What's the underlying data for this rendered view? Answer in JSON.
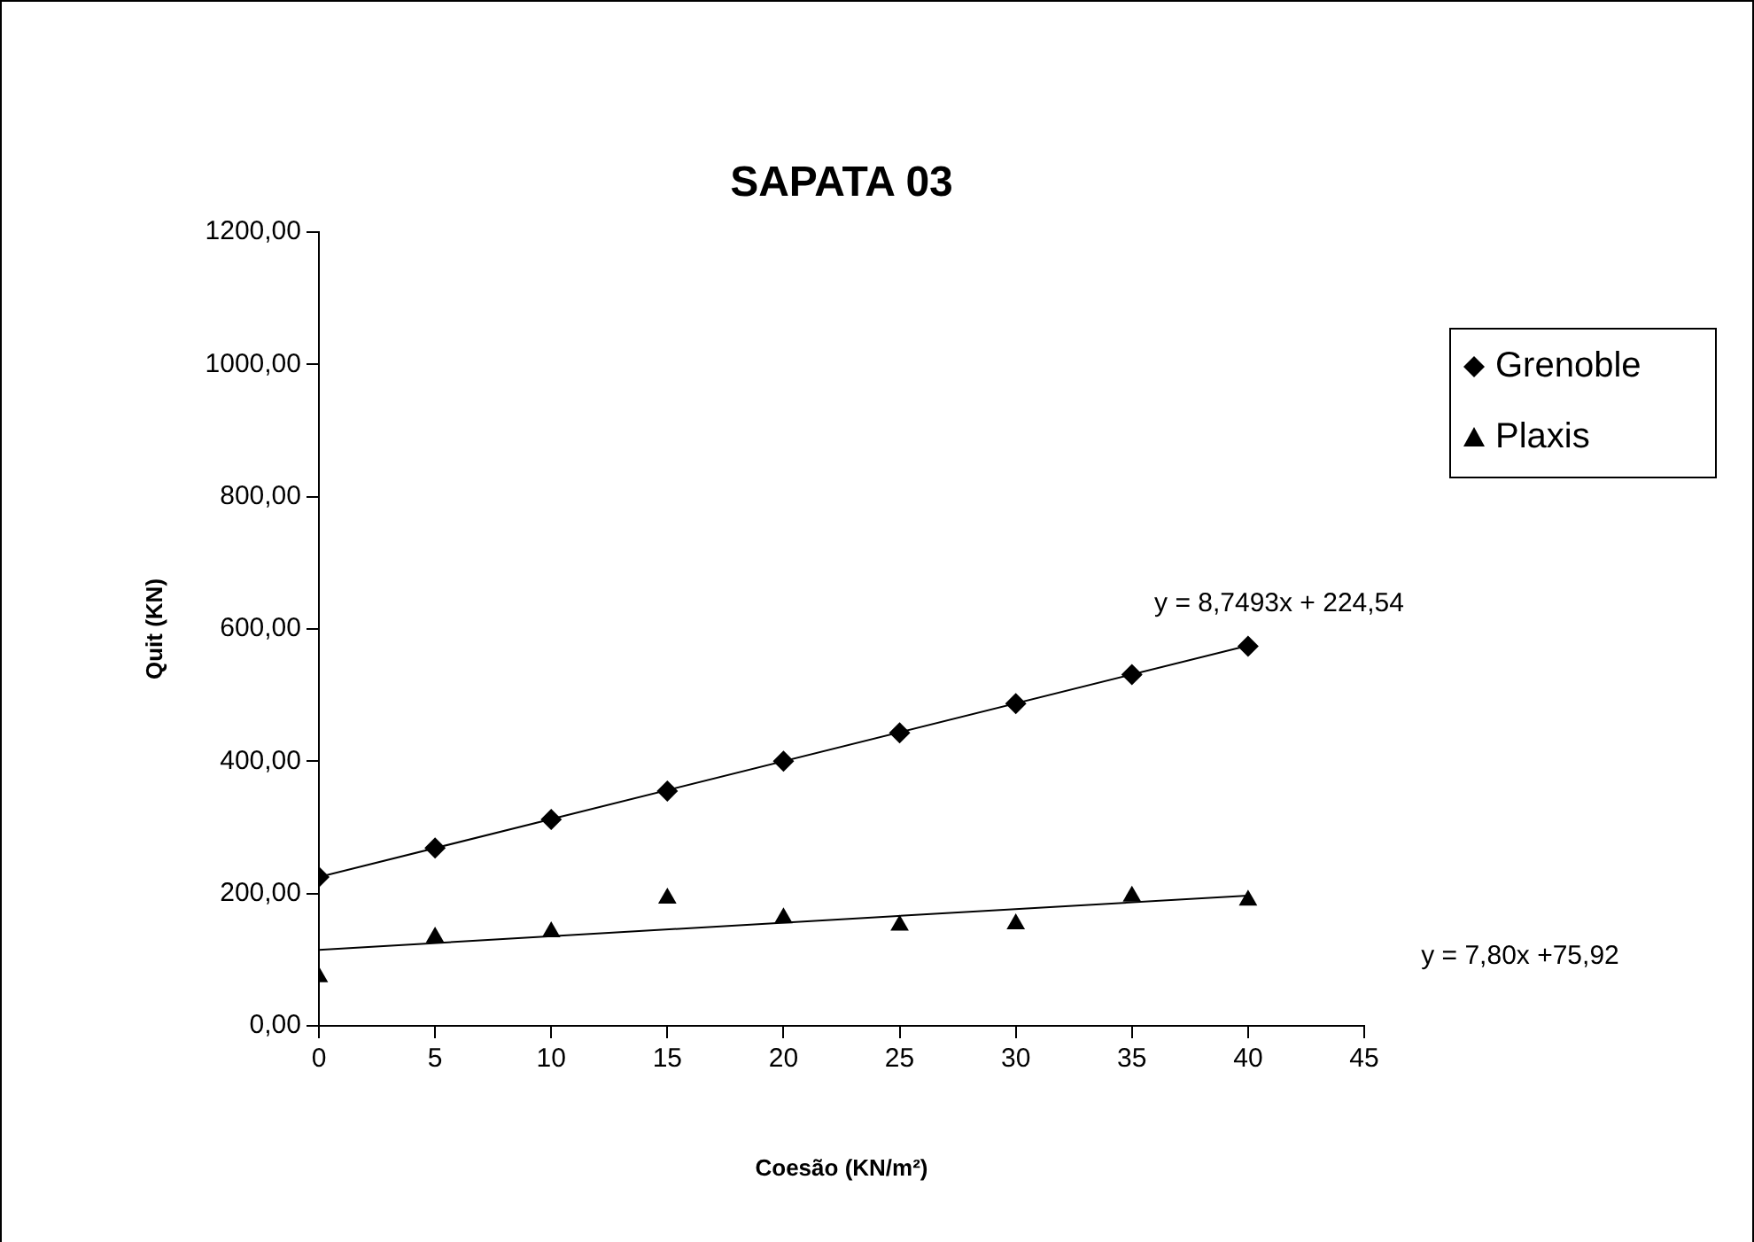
{
  "chart_data": {
    "type": "scatter",
    "title": "SAPATA 03",
    "xlabel": "Coesão (KN/m²)",
    "ylabel": "Quit (KN)",
    "xlim": [
      0,
      45
    ],
    "xticks": [
      0,
      5,
      10,
      15,
      20,
      25,
      30,
      35,
      40,
      45
    ],
    "ylim": [
      0,
      1200
    ],
    "yticks": [
      {
        "value": 0,
        "label": "0,00"
      },
      {
        "value": 200,
        "label": "200,00"
      },
      {
        "value": 400,
        "label": "400,00"
      },
      {
        "value": 600,
        "label": "600,00"
      },
      {
        "value": 800,
        "label": "800,00"
      },
      {
        "value": 1000,
        "label": "1000,00"
      },
      {
        "value": 1200,
        "label": "1200,00"
      }
    ],
    "grid": false,
    "legend": "right",
    "series": [
      {
        "name": "Grenoble",
        "marker": "diamond",
        "color": "#000000",
        "x": [
          0,
          5,
          10,
          15,
          20,
          25,
          30,
          35,
          40
        ],
        "values": [
          225,
          269,
          312,
          355,
          400,
          443,
          487,
          531,
          574
        ]
      },
      {
        "name": "Plaxis",
        "marker": "triangle",
        "color": "#000000",
        "x": [
          0,
          5,
          10,
          15,
          20,
          25,
          30,
          35,
          40
        ],
        "values": [
          74,
          134,
          142,
          193,
          163,
          152,
          154,
          196,
          190
        ]
      },
      {
        "type": "line",
        "color": "#000000",
        "x": [
          0,
          40
        ],
        "values": [
          225,
          575
        ]
      },
      {
        "type": "line",
        "color": "#000000",
        "x": [
          0,
          40
        ],
        "values": [
          115,
          197
        ]
      }
    ],
    "annotations": [
      "y = 8,7493x + 224,54",
      "y = 7,80x +75,92"
    ]
  }
}
